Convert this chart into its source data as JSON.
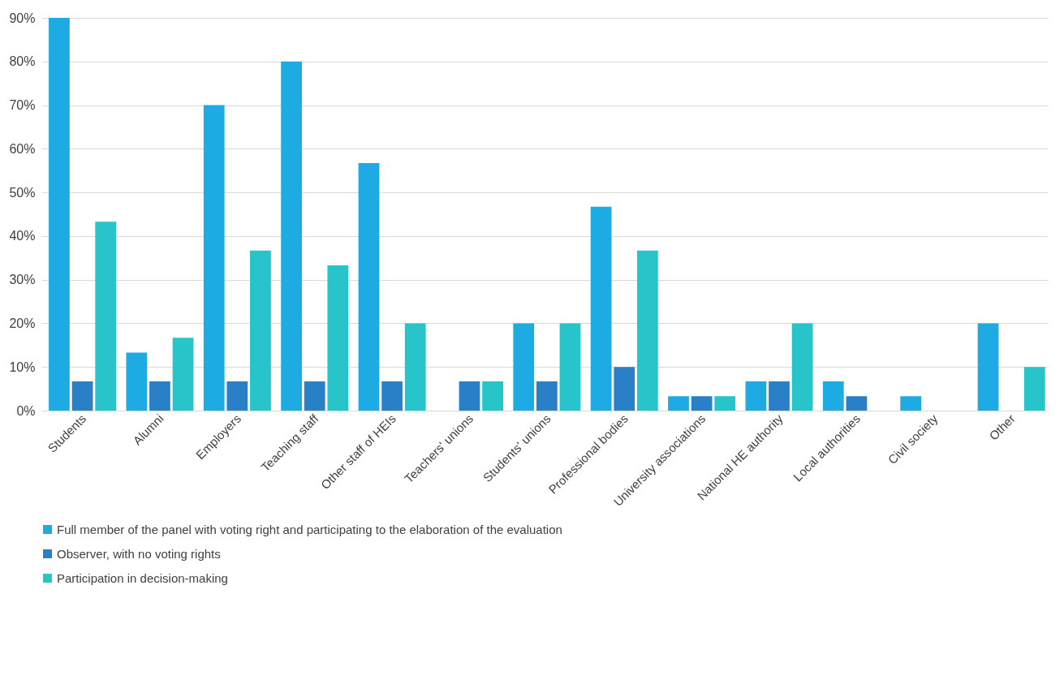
{
  "chart_data": {
    "type": "bar",
    "categories": [
      "Students",
      "Alumni",
      "Employers",
      "Teaching staff",
      "Other staff of HEIs",
      "Teachers' unions",
      "Students' unions",
      "Professional bodies",
      "University associations",
      "National HE authority",
      "Local authorities",
      "Civil society",
      "Other"
    ],
    "series": [
      {
        "name": "Full member of the panel with voting right and participating to the elaboration of the evaluation",
        "color": "#1eabe3",
        "values": [
          90,
          13.3,
          70,
          80,
          56.7,
          0,
          20,
          46.7,
          3.3,
          6.7,
          6.7,
          3.3,
          20
        ]
      },
      {
        "name": "Observer, with no voting rights",
        "color": "#2a80c6",
        "values": [
          6.7,
          6.7,
          6.7,
          6.7,
          6.7,
          6.7,
          6.7,
          10,
          3.3,
          6.7,
          3.3,
          0,
          0
        ]
      },
      {
        "name": "Participation in decision-making",
        "color": "#27c4ca",
        "values": [
          43.3,
          16.7,
          36.7,
          33.3,
          20,
          6.7,
          20,
          36.7,
          3.3,
          20,
          0,
          0,
          10
        ]
      }
    ],
    "ylim": [
      0,
      90
    ],
    "yticks": [
      {
        "value": 0,
        "label": "0%"
      },
      {
        "value": 10,
        "label": "10%"
      },
      {
        "value": 20,
        "label": "20%"
      },
      {
        "value": 30,
        "label": "30%"
      },
      {
        "value": 40,
        "label": "40%"
      },
      {
        "value": 50,
        "label": "50%"
      },
      {
        "value": 60,
        "label": "60%"
      },
      {
        "value": 70,
        "label": "70%"
      },
      {
        "value": 80,
        "label": "80%"
      },
      {
        "value": 90,
        "label": "90%"
      }
    ],
    "grid": "y",
    "legend": "bottom"
  }
}
